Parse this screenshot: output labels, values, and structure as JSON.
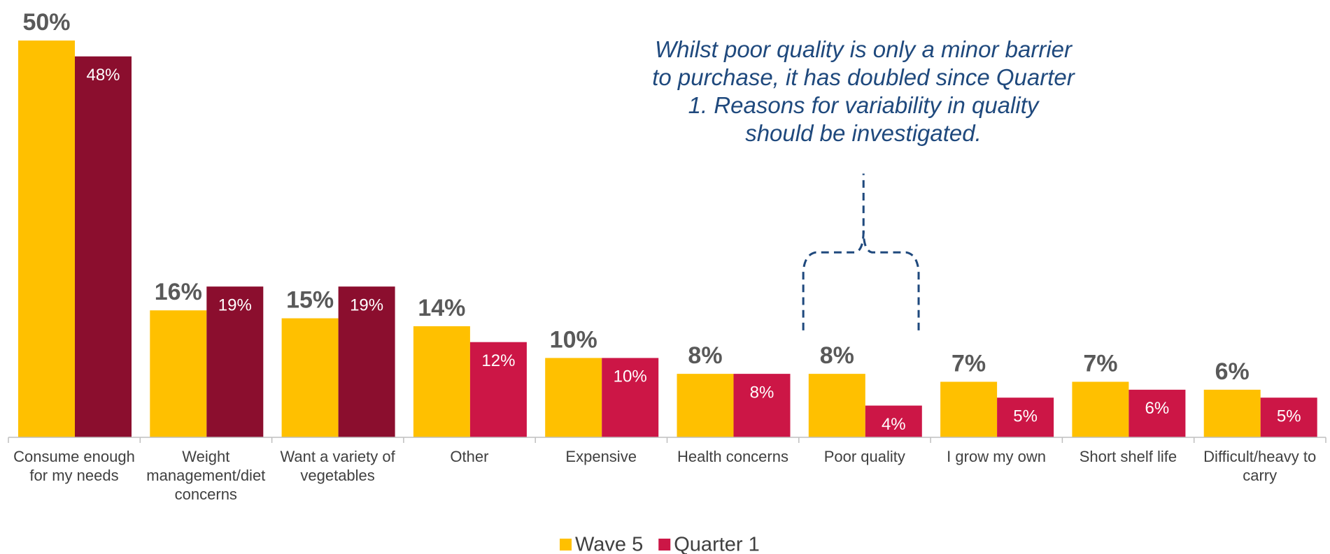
{
  "chart_data": {
    "type": "bar",
    "annotation": [
      "Whilst poor quality is only a minor barrier",
      "to purchase, it has doubled since Quarter",
      "1. Reasons for variability in quality",
      "should be investigated."
    ],
    "categories": [
      "Consume enough for my needs",
      "Weight management/diet concerns",
      "Want a variety of vegetables",
      "Other",
      "Expensive",
      "Health concerns",
      "Poor quality",
      "I grow my own",
      "Short shelf life",
      "Difficult/heavy to carry"
    ],
    "series": [
      {
        "name": "Wave 5",
        "color": "#FFC000",
        "values": [
          50,
          16,
          15,
          14,
          10,
          8,
          8,
          7,
          7,
          6
        ],
        "value_labels": [
          "50%",
          "16%",
          "15%",
          "14%",
          "10%",
          "8%",
          "8%",
          "7%",
          "7%",
          "6%"
        ]
      },
      {
        "name": "Quarter 1",
        "color": "#CC1646",
        "colors": [
          "#8B0E2E",
          "#8B0E2E",
          "#8B0E2E",
          "#CC1646",
          "#CC1646",
          "#CC1646",
          "#CC1646",
          "#CC1646",
          "#CC1646",
          "#CC1646"
        ],
        "values": [
          48,
          19,
          19,
          12,
          10,
          8,
          4,
          5,
          6,
          5
        ],
        "value_labels": [
          "48%",
          "19%",
          "19%",
          "12%",
          "10%",
          "8%",
          "4%",
          "5%",
          "6%",
          "5%"
        ]
      }
    ]
  }
}
